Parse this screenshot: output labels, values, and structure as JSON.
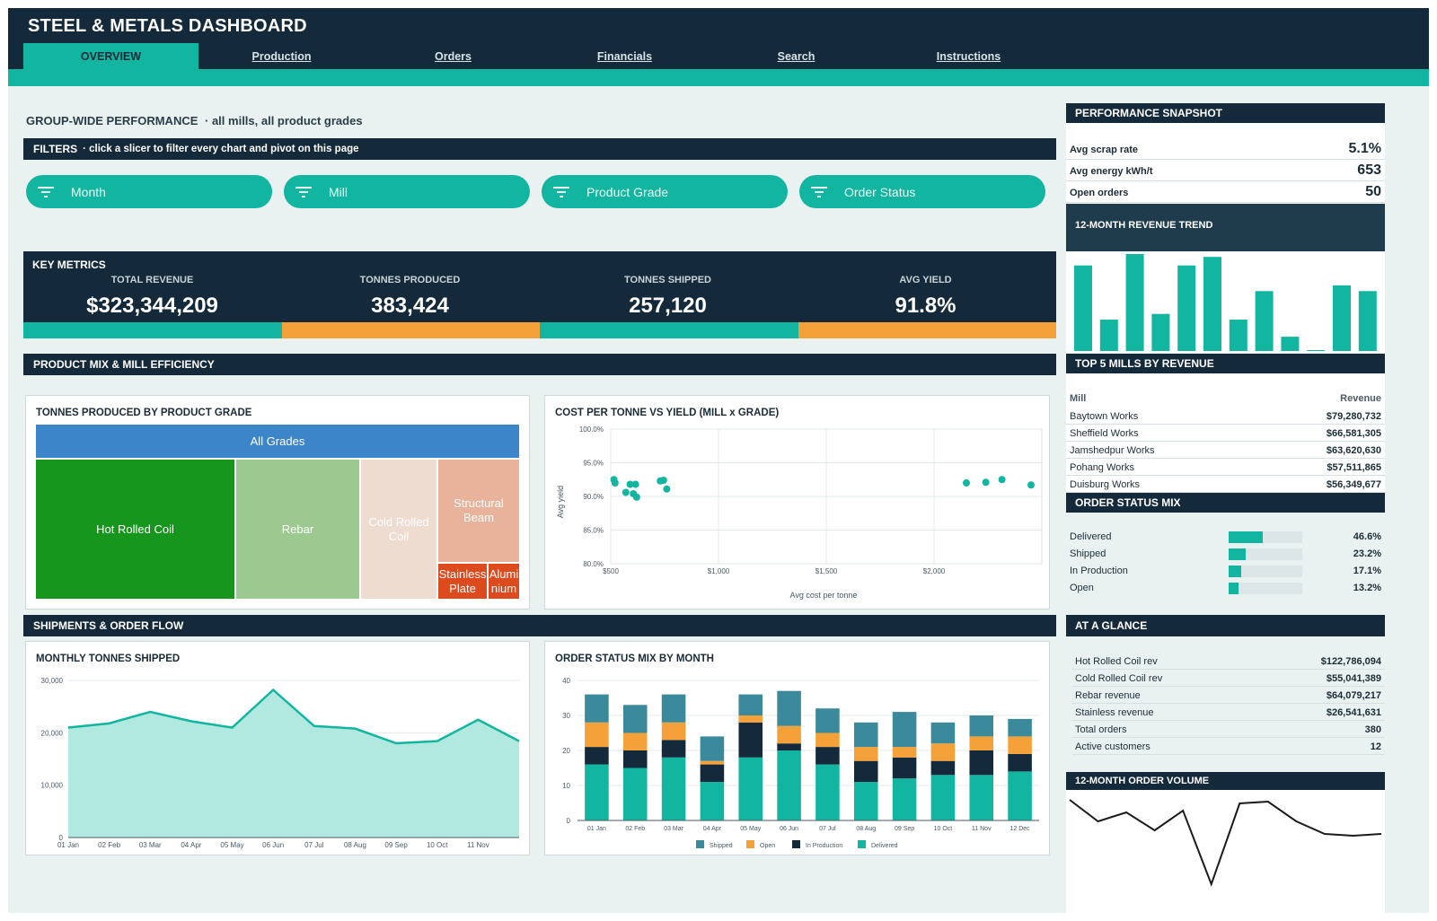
{
  "title": "STEEL & METALS DASHBOARD",
  "nav": [
    {
      "label": "OVERVIEW",
      "active": true
    },
    {
      "label": "Production"
    },
    {
      "label": "Orders"
    },
    {
      "label": "Financials"
    },
    {
      "label": "Search"
    },
    {
      "label": "Instructions"
    }
  ],
  "heading": {
    "main": "GROUP-WIDE PERFORMANCE",
    "sub": "· all mills, all product grades"
  },
  "filters": {
    "title": "FILTERS",
    "hint": "· click a slicer to filter every chart and pivot on this page",
    "slicers": [
      "Month",
      "Mill",
      "Product Grade",
      "Order Status"
    ]
  },
  "key_metrics": {
    "title": "KEY METRICS",
    "items": [
      {
        "label": "TOTAL REVENUE",
        "value": "$323,344,209"
      },
      {
        "label": "TONNES PRODUCED",
        "value": "383,424"
      },
      {
        "label": "TONNES SHIPPED",
        "value": "257,120"
      },
      {
        "label": "AVG YIELD",
        "value": "91.8%"
      }
    ]
  },
  "sections": {
    "mix": "PRODUCT MIX & MILL EFFICIENCY",
    "shipments": "SHIPMENTS & ORDER FLOW"
  },
  "treemap": {
    "title": "TONNES PRODUCED BY PRODUCT GRADE",
    "root": "All Grades",
    "items": [
      {
        "label": "Hot Rolled Coil",
        "color": "#16961c"
      },
      {
        "label": "Rebar",
        "color": "#9bc98f"
      },
      {
        "label": "Cold Rolled Coil",
        "color": "#efdcd0"
      },
      {
        "label": "Structural Beam",
        "color": "#e8b29b"
      },
      {
        "label": "Stainless Plate",
        "color": "#dd4a1e"
      },
      {
        "label": "Alumi nium",
        "color": "#dd4a1e"
      }
    ]
  },
  "chart_data": [
    {
      "type": "scatter",
      "title": "COST PER TONNE VS YIELD  (MILL x GRADE)",
      "xlabel": "Avg cost per tonne",
      "ylabel": "Avg yield",
      "xlim": [
        500,
        2450
      ],
      "ylim": [
        80,
        100
      ],
      "x_ticks": [
        "$500",
        "$1,000",
        "$1,500",
        "$2,000"
      ],
      "y_ticks": [
        "80.0%",
        "85.0%",
        "90.0%",
        "95.0%",
        "100.0%"
      ],
      "points": [
        {
          "x": 515,
          "y": 92.5
        },
        {
          "x": 520,
          "y": 92.0
        },
        {
          "x": 570,
          "y": 90.6
        },
        {
          "x": 590,
          "y": 91.8
        },
        {
          "x": 605,
          "y": 90.4
        },
        {
          "x": 615,
          "y": 91.8
        },
        {
          "x": 620,
          "y": 89.9
        },
        {
          "x": 730,
          "y": 92.3
        },
        {
          "x": 745,
          "y": 92.4
        },
        {
          "x": 760,
          "y": 91.1
        },
        {
          "x": 2150,
          "y": 92.0
        },
        {
          "x": 2240,
          "y": 92.1
        },
        {
          "x": 2315,
          "y": 92.5
        },
        {
          "x": 2450,
          "y": 91.7
        }
      ],
      "color": "#12b5a0"
    },
    {
      "type": "area",
      "title": "MONTHLY TONNES SHIPPED",
      "x": [
        "01 Jan",
        "02 Feb",
        "03 Mar",
        "04 Apr",
        "05 May",
        "06 Jun",
        "07 Jul",
        "08 Aug",
        "09 Sep",
        "10 Oct",
        "11 Nov",
        "12 Dec"
      ],
      "x_ticks": [
        "01 Jan",
        "02 Feb",
        "03 Mar",
        "04 Apr",
        "05 May",
        "06 Jun",
        "07 Jul",
        "08 Aug",
        "09 Sep",
        "10 Oct",
        "11 Nov"
      ],
      "values": [
        21000,
        21800,
        24000,
        22200,
        21000,
        28200,
        21300,
        20800,
        18000,
        18400,
        22500,
        18400
      ],
      "ylim": [
        0,
        30000
      ],
      "y_ticks": [
        "0",
        "10,000",
        "20,000",
        "30,000"
      ],
      "fill": "#b1e8df",
      "stroke": "#12b5a0"
    },
    {
      "type": "bar",
      "stacked": true,
      "title": "ORDER STATUS MIX BY MONTH",
      "categories": [
        "01 Jan",
        "02 Feb",
        "03 Mar",
        "04 Apr",
        "05 May",
        "06 Jun",
        "07 Jul",
        "08 Aug",
        "09 Sep",
        "10 Oct",
        "11 Nov",
        "12 Dec"
      ],
      "ylim": [
        0,
        40
      ],
      "y_ticks": [
        "0",
        "10",
        "20",
        "30",
        "40"
      ],
      "series": [
        {
          "name": "Delivered",
          "color": "#12b5a0",
          "values": [
            16,
            15,
            18,
            11,
            18,
            20,
            16,
            11,
            12,
            13,
            13,
            14
          ]
        },
        {
          "name": "In Production",
          "color": "#14293a",
          "values": [
            5,
            5,
            5,
            5,
            10,
            2,
            5,
            6,
            6,
            4,
            7,
            5
          ]
        },
        {
          "name": "Open",
          "color": "#f4a13a",
          "values": [
            7,
            5,
            5,
            1,
            2,
            5,
            4,
            4,
            3,
            5,
            4,
            5
          ]
        },
        {
          "name": "Shipped",
          "color": "#3b8a9c",
          "values": [
            8,
            8,
            8,
            7,
            6,
            10,
            7,
            7,
            10,
            6,
            6,
            5
          ]
        }
      ],
      "legend_order": [
        "Shipped",
        "Open",
        "In Production",
        "Delivered"
      ]
    },
    {
      "type": "bar",
      "title": "12-MONTH REVENUE TREND",
      "categories": [
        "M1",
        "M2",
        "M3",
        "M4",
        "M5",
        "M6",
        "M7",
        "M8",
        "M9",
        "M10",
        "M11",
        "M12"
      ],
      "values": [
        30,
        11,
        34,
        13,
        30,
        33,
        11,
        21,
        5,
        0,
        23,
        21
      ],
      "color": "#12b5a0"
    },
    {
      "type": "line",
      "title": "12-MONTH ORDER VOLUME",
      "values": [
        42,
        30,
        35,
        25,
        36,
        -5,
        40,
        41,
        30,
        23,
        22,
        23
      ],
      "color": "#1b1b1b"
    }
  ],
  "snapshot": {
    "title": "PERFORMANCE SNAPSHOT",
    "rows": [
      {
        "label": "Avg scrap rate",
        "value": "5.1%"
      },
      {
        "label": "Avg energy kWh/t",
        "value": "653"
      },
      {
        "label": "Open orders",
        "value": "50"
      }
    ]
  },
  "top_mills": {
    "title": "TOP 5 MILLS BY REVENUE",
    "col_mill": "Mill",
    "col_rev": "Revenue",
    "rows": [
      {
        "mill": "Baytown Works",
        "revenue": "$79,280,732"
      },
      {
        "mill": "Sheffield Works",
        "revenue": "$66,581,305"
      },
      {
        "mill": "Jamshedpur Works",
        "revenue": "$63,620,630"
      },
      {
        "mill": "Pohang Works",
        "revenue": "$57,511,865"
      },
      {
        "mill": "Duisburg Works",
        "revenue": "$56,349,677"
      }
    ]
  },
  "order_status": {
    "title": "ORDER STATUS MIX",
    "rows": [
      {
        "label": "Delivered",
        "value": "46.6%",
        "fraction": 0.466
      },
      {
        "label": "Shipped",
        "value": "23.2%",
        "fraction": 0.232
      },
      {
        "label": "In Production",
        "value": "17.1%",
        "fraction": 0.171
      },
      {
        "label": "Open",
        "value": "13.2%",
        "fraction": 0.132
      }
    ]
  },
  "glance": {
    "title": "AT A GLANCE",
    "rows": [
      {
        "label": "Hot Rolled Coil rev",
        "value": "$122,786,094"
      },
      {
        "label": "Cold Rolled Coil rev",
        "value": "$55,041,389"
      },
      {
        "label": "Rebar revenue",
        "value": "$64,079,217"
      },
      {
        "label": "Stainless revenue",
        "value": "$26,541,631"
      },
      {
        "label": "Total orders",
        "value": "380"
      },
      {
        "label": "Active customers",
        "value": "12"
      }
    ]
  },
  "colors": {
    "navy": "#14293a",
    "teal": "#12b5a0",
    "orange": "#f4a13a",
    "background": "#eaf1f1"
  }
}
